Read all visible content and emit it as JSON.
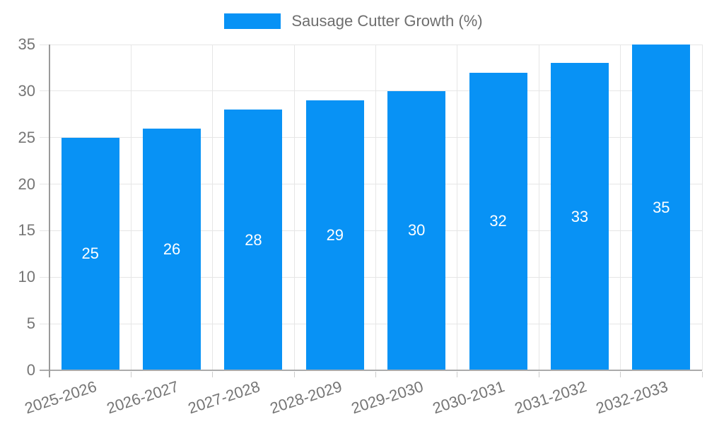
{
  "chart_data": {
    "type": "bar",
    "title": "",
    "legend": "Sausage Cutter Growth (%)",
    "legend_position": "top",
    "categories": [
      "2025-2026",
      "2026-2027",
      "2027-2028",
      "2028-2029",
      "2029-2030",
      "2030-2031",
      "2031-2032",
      "2032-2033"
    ],
    "values": [
      25,
      26,
      28,
      29,
      30,
      32,
      33,
      35
    ],
    "xlabel": "",
    "ylabel": "",
    "ylim": [
      0,
      35
    ],
    "yticks": [
      0,
      5,
      10,
      15,
      20,
      25,
      30,
      35
    ],
    "grid": true,
    "x_label_rotation_deg": -18,
    "colors": {
      "bar": "#0892f5",
      "bar_value_label": "#ffffff",
      "axis_text": "#757575",
      "legend_text": "#6e6e6e",
      "gridline": "#e6e6e6",
      "axis_line": "#9a9a9a",
      "baseline": "#ababab",
      "tick_mark": "#cccccc",
      "background": "#ffffff"
    }
  }
}
